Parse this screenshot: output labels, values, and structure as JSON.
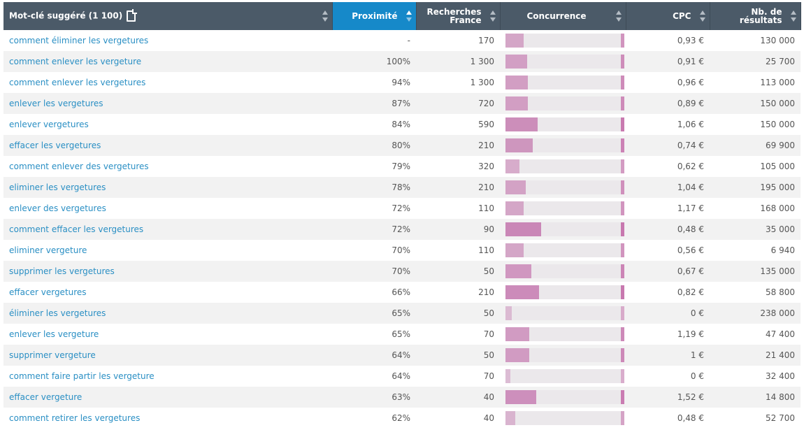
{
  "header": {
    "keyword_label": "Mot-clé suggéré (1 100)",
    "proximity_label": "Proximité",
    "searches_line1": "Recherches",
    "searches_line2": "France",
    "competition_label": "Concurrence",
    "cpc_label": "CPC",
    "results_label": "Nb. de résultats"
  },
  "colors": {
    "header_bg": "#4b5a68",
    "active_header": "#1689c9",
    "link": "#2a8fc4",
    "bar_track": "#ebe8eb"
  },
  "rows": [
    {
      "keyword": "comment éliminer les vergetures",
      "proximity": "-",
      "searches": "170",
      "competition": 0.15,
      "cpc": "0,93 €",
      "results": "130 000"
    },
    {
      "keyword": "comment enlever les vergeture",
      "proximity": "100%",
      "searches": "1 300",
      "competition": 0.18,
      "cpc": "0,91 €",
      "results": "25 700"
    },
    {
      "keyword": "comment enlever les vergetures",
      "proximity": "94%",
      "searches": "1 300",
      "competition": 0.19,
      "cpc": "0,96 €",
      "results": "113 000"
    },
    {
      "keyword": "enlever les vergetures",
      "proximity": "87%",
      "searches": "720",
      "competition": 0.19,
      "cpc": "0,89 €",
      "results": "150 000"
    },
    {
      "keyword": "enlever vergetures",
      "proximity": "84%",
      "searches": "590",
      "competition": 0.27,
      "cpc": "1,06 €",
      "results": "150 000"
    },
    {
      "keyword": "effacer les vergetures",
      "proximity": "80%",
      "searches": "210",
      "competition": 0.23,
      "cpc": "0,74 €",
      "results": "69 900"
    },
    {
      "keyword": "comment enlever des vergetures",
      "proximity": "79%",
      "searches": "320",
      "competition": 0.12,
      "cpc": "0,62 €",
      "results": "105 000"
    },
    {
      "keyword": "eliminer les vergetures",
      "proximity": "78%",
      "searches": "210",
      "competition": 0.17,
      "cpc": "1,04 €",
      "results": "195 000"
    },
    {
      "keyword": "enlever des vergetures",
      "proximity": "72%",
      "searches": "110",
      "competition": 0.15,
      "cpc": "1,17 €",
      "results": "168 000"
    },
    {
      "keyword": "comment effacer les vergetures",
      "proximity": "72%",
      "searches": "90",
      "competition": 0.3,
      "cpc": "0,48 €",
      "results": "35 000"
    },
    {
      "keyword": "eliminer vergeture",
      "proximity": "70%",
      "searches": "110",
      "competition": 0.15,
      "cpc": "0,56 €",
      "results": "6 940"
    },
    {
      "keyword": "supprimer les vergetures",
      "proximity": "70%",
      "searches": "50",
      "competition": 0.22,
      "cpc": "0,67 €",
      "results": "135 000"
    },
    {
      "keyword": "effacer vergetures",
      "proximity": "66%",
      "searches": "210",
      "competition": 0.28,
      "cpc": "0,82 €",
      "results": "58 800"
    },
    {
      "keyword": "éliminer les vergetures",
      "proximity": "65%",
      "searches": "50",
      "competition": 0.05,
      "cpc": "0 €",
      "results": "238 000"
    },
    {
      "keyword": "enlever les vergeture",
      "proximity": "65%",
      "searches": "70",
      "competition": 0.2,
      "cpc": "1,19 €",
      "results": "47 400"
    },
    {
      "keyword": "supprimer vergeture",
      "proximity": "64%",
      "searches": "50",
      "competition": 0.2,
      "cpc": "1 €",
      "results": "21 400"
    },
    {
      "keyword": "comment faire partir les vergeture",
      "proximity": "64%",
      "searches": "70",
      "competition": 0.04,
      "cpc": "0 €",
      "results": "32 400"
    },
    {
      "keyword": "effacer vergeture",
      "proximity": "63%",
      "searches": "40",
      "competition": 0.26,
      "cpc": "1,52 €",
      "results": "14 800"
    },
    {
      "keyword": "comment retirer les vergetures",
      "proximity": "62%",
      "searches": "40",
      "competition": 0.08,
      "cpc": "0,48 €",
      "results": "52 700"
    }
  ]
}
